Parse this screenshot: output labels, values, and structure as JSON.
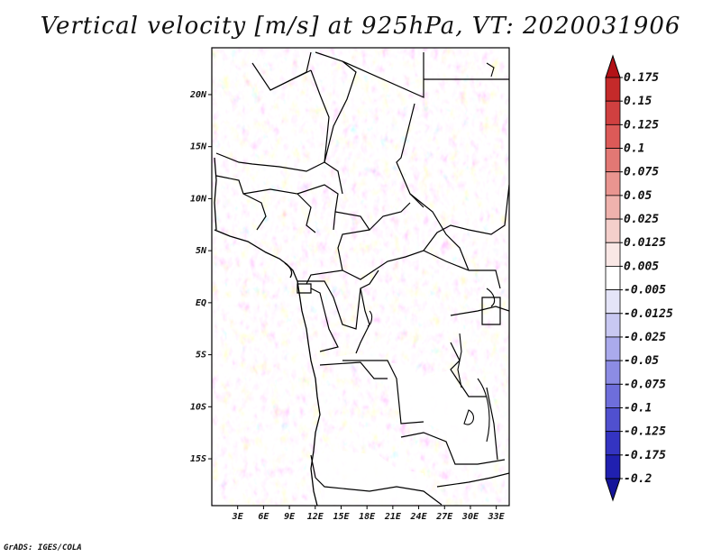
{
  "title": "Vertical velocity [m/s] at 925hPa, VT: 2020031906",
  "map": {
    "y_ticks": [
      "20N",
      "15N",
      "10N",
      "5N",
      "EQ",
      "5S",
      "10S",
      "15S"
    ],
    "y_tick_values": [
      20,
      15,
      10,
      5,
      0,
      -5,
      -10,
      -15
    ],
    "x_ticks": [
      "3E",
      "6E",
      "9E",
      "12E",
      "15E",
      "18E",
      "21E",
      "24E",
      "27E",
      "30E",
      "33E"
    ],
    "x_tick_values": [
      3,
      6,
      9,
      12,
      15,
      18,
      21,
      24,
      27,
      30,
      33
    ],
    "lon_range": [
      0,
      34.5
    ],
    "lat_range": [
      -19.5,
      24.5
    ],
    "field": "vertical velocity"
  },
  "colorbar": {
    "labels": [
      "0.175",
      "0.15",
      "0.125",
      "0.1",
      "0.075",
      "0.05",
      "0.025",
      "0.0125",
      "0.005",
      "-0.005",
      "-0.0125",
      "-0.025",
      "-0.05",
      "-0.075",
      "-0.1",
      "-0.125",
      "-0.175",
      "-0.2"
    ],
    "colors": [
      "#b31217",
      "#c42a2a",
      "#d04040",
      "#dc5a58",
      "#e27874",
      "#e99590",
      "#efb2ad",
      "#f4cfcb",
      "#f9e7e5",
      "#ffffff",
      "#e4e4f8",
      "#c8c8f2",
      "#aaaaec",
      "#8c8ce4",
      "#6e6edb",
      "#5050cf",
      "#3434c2",
      "#2020b0",
      "#15159a"
    ]
  },
  "credit": "GrADS: IGES/COLA"
}
